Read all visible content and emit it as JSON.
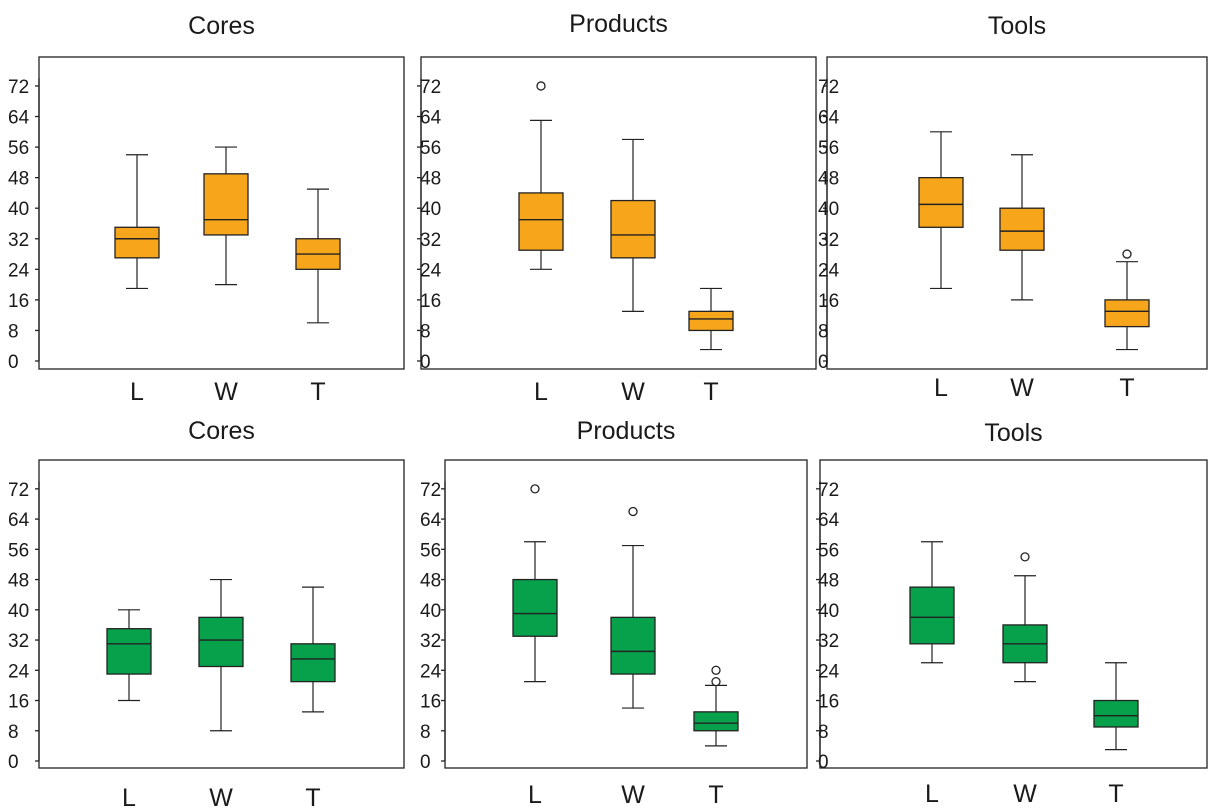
{
  "colors": {
    "top_row": "#F7A61C",
    "bottom_row": "#07A14C",
    "outline": "#222222"
  },
  "chart_data": [
    {
      "type": "box",
      "title": "Cores",
      "categories": [
        "L",
        "W",
        "T"
      ],
      "ylim": [
        0,
        76
      ],
      "yticks": [
        "0",
        "8",
        "16",
        "24",
        "32",
        "40",
        "48",
        "56",
        "64",
        "72"
      ],
      "color": "#F7A61C",
      "boxes": [
        {
          "category": "L",
          "min": 19,
          "q1": 27,
          "median": 32,
          "q3": 35,
          "max": 54,
          "outliers": []
        },
        {
          "category": "W",
          "min": 20,
          "q1": 33,
          "median": 37,
          "q3": 49,
          "max": 56,
          "outliers": []
        },
        {
          "category": "T",
          "min": 10,
          "q1": 24,
          "median": 28,
          "q3": 32,
          "max": 45,
          "outliers": []
        }
      ]
    },
    {
      "type": "box",
      "title": "Products",
      "categories": [
        "L",
        "W",
        "T"
      ],
      "ylim": [
        0,
        76
      ],
      "yticks": [
        "0",
        "8",
        "16",
        "24",
        "32",
        "40",
        "48",
        "56",
        "64",
        "72"
      ],
      "color": "#F7A61C",
      "boxes": [
        {
          "category": "L",
          "min": 24,
          "q1": 29,
          "median": 37,
          "q3": 44,
          "max": 63,
          "outliers": [
            72
          ]
        },
        {
          "category": "W",
          "min": 13,
          "q1": 27,
          "median": 33,
          "q3": 42,
          "max": 58,
          "outliers": []
        },
        {
          "category": "T",
          "min": 3,
          "q1": 8,
          "median": 11,
          "q3": 13,
          "max": 19,
          "outliers": []
        }
      ]
    },
    {
      "type": "box",
      "title": "Tools",
      "categories": [
        "L",
        "W",
        "T"
      ],
      "ylim": [
        0,
        76
      ],
      "yticks": [
        "0",
        "8",
        "16",
        "24",
        "32",
        "40",
        "48",
        "56",
        "64",
        "72"
      ],
      "color": "#F7A61C",
      "boxes": [
        {
          "category": "L",
          "min": 19,
          "q1": 35,
          "median": 41,
          "q3": 48,
          "max": 60,
          "outliers": []
        },
        {
          "category": "W",
          "min": 16,
          "q1": 29,
          "median": 34,
          "q3": 40,
          "max": 54,
          "outliers": []
        },
        {
          "category": "T",
          "min": 3,
          "q1": 9,
          "median": 13,
          "q3": 16,
          "max": 26,
          "outliers": [
            28
          ]
        }
      ]
    },
    {
      "type": "box",
      "title": "Cores",
      "categories": [
        "L",
        "W",
        "T"
      ],
      "ylim": [
        0,
        76
      ],
      "yticks": [
        "0",
        "8",
        "16",
        "24",
        "32",
        "40",
        "48",
        "56",
        "64",
        "72"
      ],
      "color": "#07A14C",
      "boxes": [
        {
          "category": "L",
          "min": 16,
          "q1": 23,
          "median": 31,
          "q3": 35,
          "max": 40,
          "outliers": []
        },
        {
          "category": "W",
          "min": 8,
          "q1": 25,
          "median": 32,
          "q3": 38,
          "max": 48,
          "outliers": []
        },
        {
          "category": "T",
          "min": 13,
          "q1": 21,
          "median": 27,
          "q3": 31,
          "max": 46,
          "outliers": []
        }
      ]
    },
    {
      "type": "box",
      "title": "Products",
      "categories": [
        "L",
        "W",
        "T"
      ],
      "ylim": [
        0,
        76
      ],
      "yticks": [
        "0",
        "8",
        "16",
        "24",
        "32",
        "40",
        "48",
        "56",
        "64",
        "72"
      ],
      "color": "#07A14C",
      "boxes": [
        {
          "category": "L",
          "min": 21,
          "q1": 33,
          "median": 39,
          "q3": 48,
          "max": 58,
          "outliers": [
            72
          ]
        },
        {
          "category": "W",
          "min": 14,
          "q1": 23,
          "median": 29,
          "q3": 38,
          "max": 57,
          "outliers": [
            66
          ]
        },
        {
          "category": "T",
          "min": 4,
          "q1": 8,
          "median": 10,
          "q3": 13,
          "max": 20,
          "outliers": [
            21,
            24
          ]
        }
      ]
    },
    {
      "type": "box",
      "title": "Tools",
      "categories": [
        "L",
        "W",
        "T"
      ],
      "ylim": [
        0,
        76
      ],
      "yticks": [
        "0",
        "8",
        "16",
        "24",
        "32",
        "40",
        "48",
        "56",
        "64",
        "72"
      ],
      "color": "#07A14C",
      "boxes": [
        {
          "category": "L",
          "min": 26,
          "q1": 31,
          "median": 38,
          "q3": 46,
          "max": 58,
          "outliers": []
        },
        {
          "category": "W",
          "min": 21,
          "q1": 26,
          "median": 31,
          "q3": 36,
          "max": 49,
          "outliers": [
            54
          ]
        },
        {
          "category": "T",
          "min": 3,
          "q1": 9,
          "median": 12,
          "q3": 16,
          "max": 26,
          "outliers": []
        }
      ]
    }
  ]
}
